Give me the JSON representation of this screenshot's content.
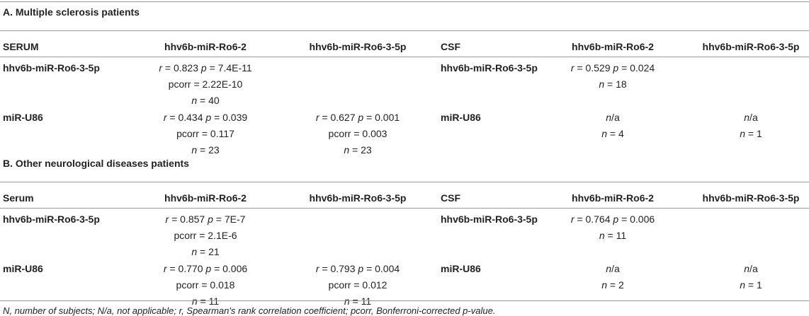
{
  "sections": [
    {
      "title": "A. Multiple sclerosis patients",
      "header": [
        "SERUM",
        "hhv6b-miR-Ro6-2",
        "hhv6b-miR-Ro6-3-5p",
        "CSF",
        "hhv6b-miR-Ro6-2",
        "hhv6b-miR-Ro6-3-5p"
      ],
      "rows": [
        [
          "hhv6b-miR-Ro6-3-5p",
          [
            "r = 0.823 p = 7.4E-11",
            "pcorr = 2.22E-10",
            "n = 40"
          ],
          [],
          "hhv6b-miR-Ro6-3-5p",
          [
            "r = 0.529 p = 0.024",
            "n = 18"
          ],
          []
        ],
        [
          "miR-U86",
          [
            "r = 0.434 p = 0.039",
            "pcorr = 0.117",
            "n = 23"
          ],
          [
            "r = 0.627 p = 0.001",
            "pcorr = 0.003",
            "n = 23"
          ],
          "miR-U86",
          [
            "n/a",
            "n = 4"
          ],
          [
            "n/a",
            "n = 1"
          ]
        ]
      ]
    },
    {
      "title": "B. Other neurological diseases patients",
      "header": [
        "Serum",
        "hhv6b-miR-Ro6-2",
        "hhv6b-miR-Ro6-3-5p",
        "CSF",
        "hhv6b-miR-Ro6-2",
        "hhv6b-miR-Ro6-3-5p"
      ],
      "rows": [
        [
          "hhv6b-miR-Ro6-3-5p",
          [
            "r = 0.857 p = 7E-7",
            "pcorr = 2.1E-6",
            "n = 21"
          ],
          [],
          "hhv6b-miR-Ro6-3-5p",
          [
            "r = 0.764 p = 0.006",
            "n = 11"
          ],
          []
        ],
        [
          "miR-U86",
          [
            "r = 0.770 p = 0.006",
            "pcorr = 0.018",
            "n = 11"
          ],
          [
            "r = 0.793 p = 0.004",
            "pcorr = 0.012",
            "n = 11"
          ],
          "miR-U86",
          [
            "n/a",
            "n = 2"
          ],
          [
            "n/a",
            "n = 1"
          ]
        ]
      ]
    }
  ],
  "footnote": "N, number of subjects; N/a, not applicable; r, Spearman's rank correlation coefficient; pcorr, Bonferroni-corrected p-value."
}
